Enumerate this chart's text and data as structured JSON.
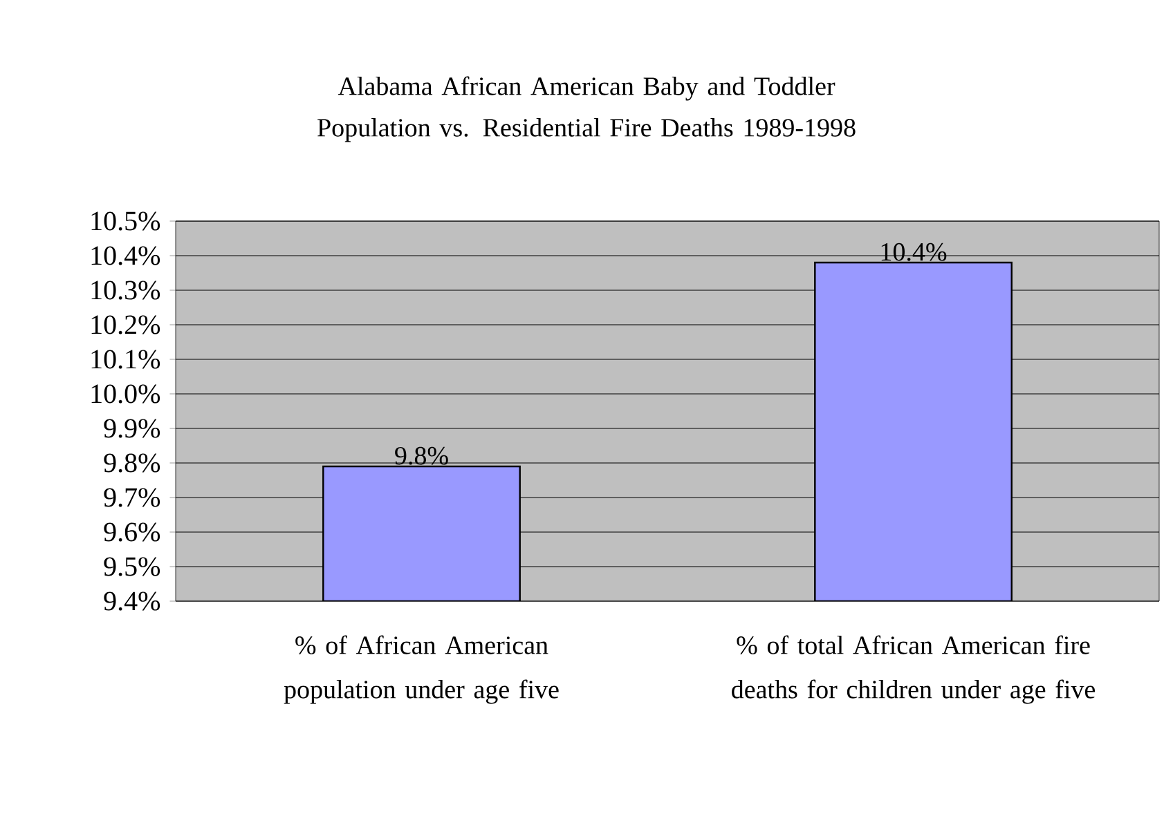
{
  "chart_data": {
    "type": "bar",
    "title": "Alabama African American Baby and Toddler Population vs. Residential Fire Deaths 1989-1998",
    "categories": [
      "% of African American population under age five",
      "% of total African American fire deaths for children under age five"
    ],
    "values": [
      9.79,
      10.38
    ],
    "value_labels": [
      "9.8%",
      "10.4%"
    ],
    "color": "#9999ff",
    "ylim": [
      9.4,
      10.5
    ],
    "yticks": [
      {
        "value": 9.4,
        "label": "9.4%"
      },
      {
        "value": 9.5,
        "label": "9.5%"
      },
      {
        "value": 9.6,
        "label": "9.6%"
      },
      {
        "value": 9.7,
        "label": "9.7%"
      },
      {
        "value": 9.8,
        "label": "9.8%"
      },
      {
        "value": 9.9,
        "label": "9.9%"
      },
      {
        "value": 10.0,
        "label": "10.0%"
      },
      {
        "value": 10.1,
        "label": "10.1%"
      },
      {
        "value": 10.2,
        "label": "10.2%"
      },
      {
        "value": 10.3,
        "label": "10.3%"
      },
      {
        "value": 10.4,
        "label": "10.4%"
      },
      {
        "value": 10.5,
        "label": "10.5%"
      }
    ],
    "grid": "y"
  }
}
